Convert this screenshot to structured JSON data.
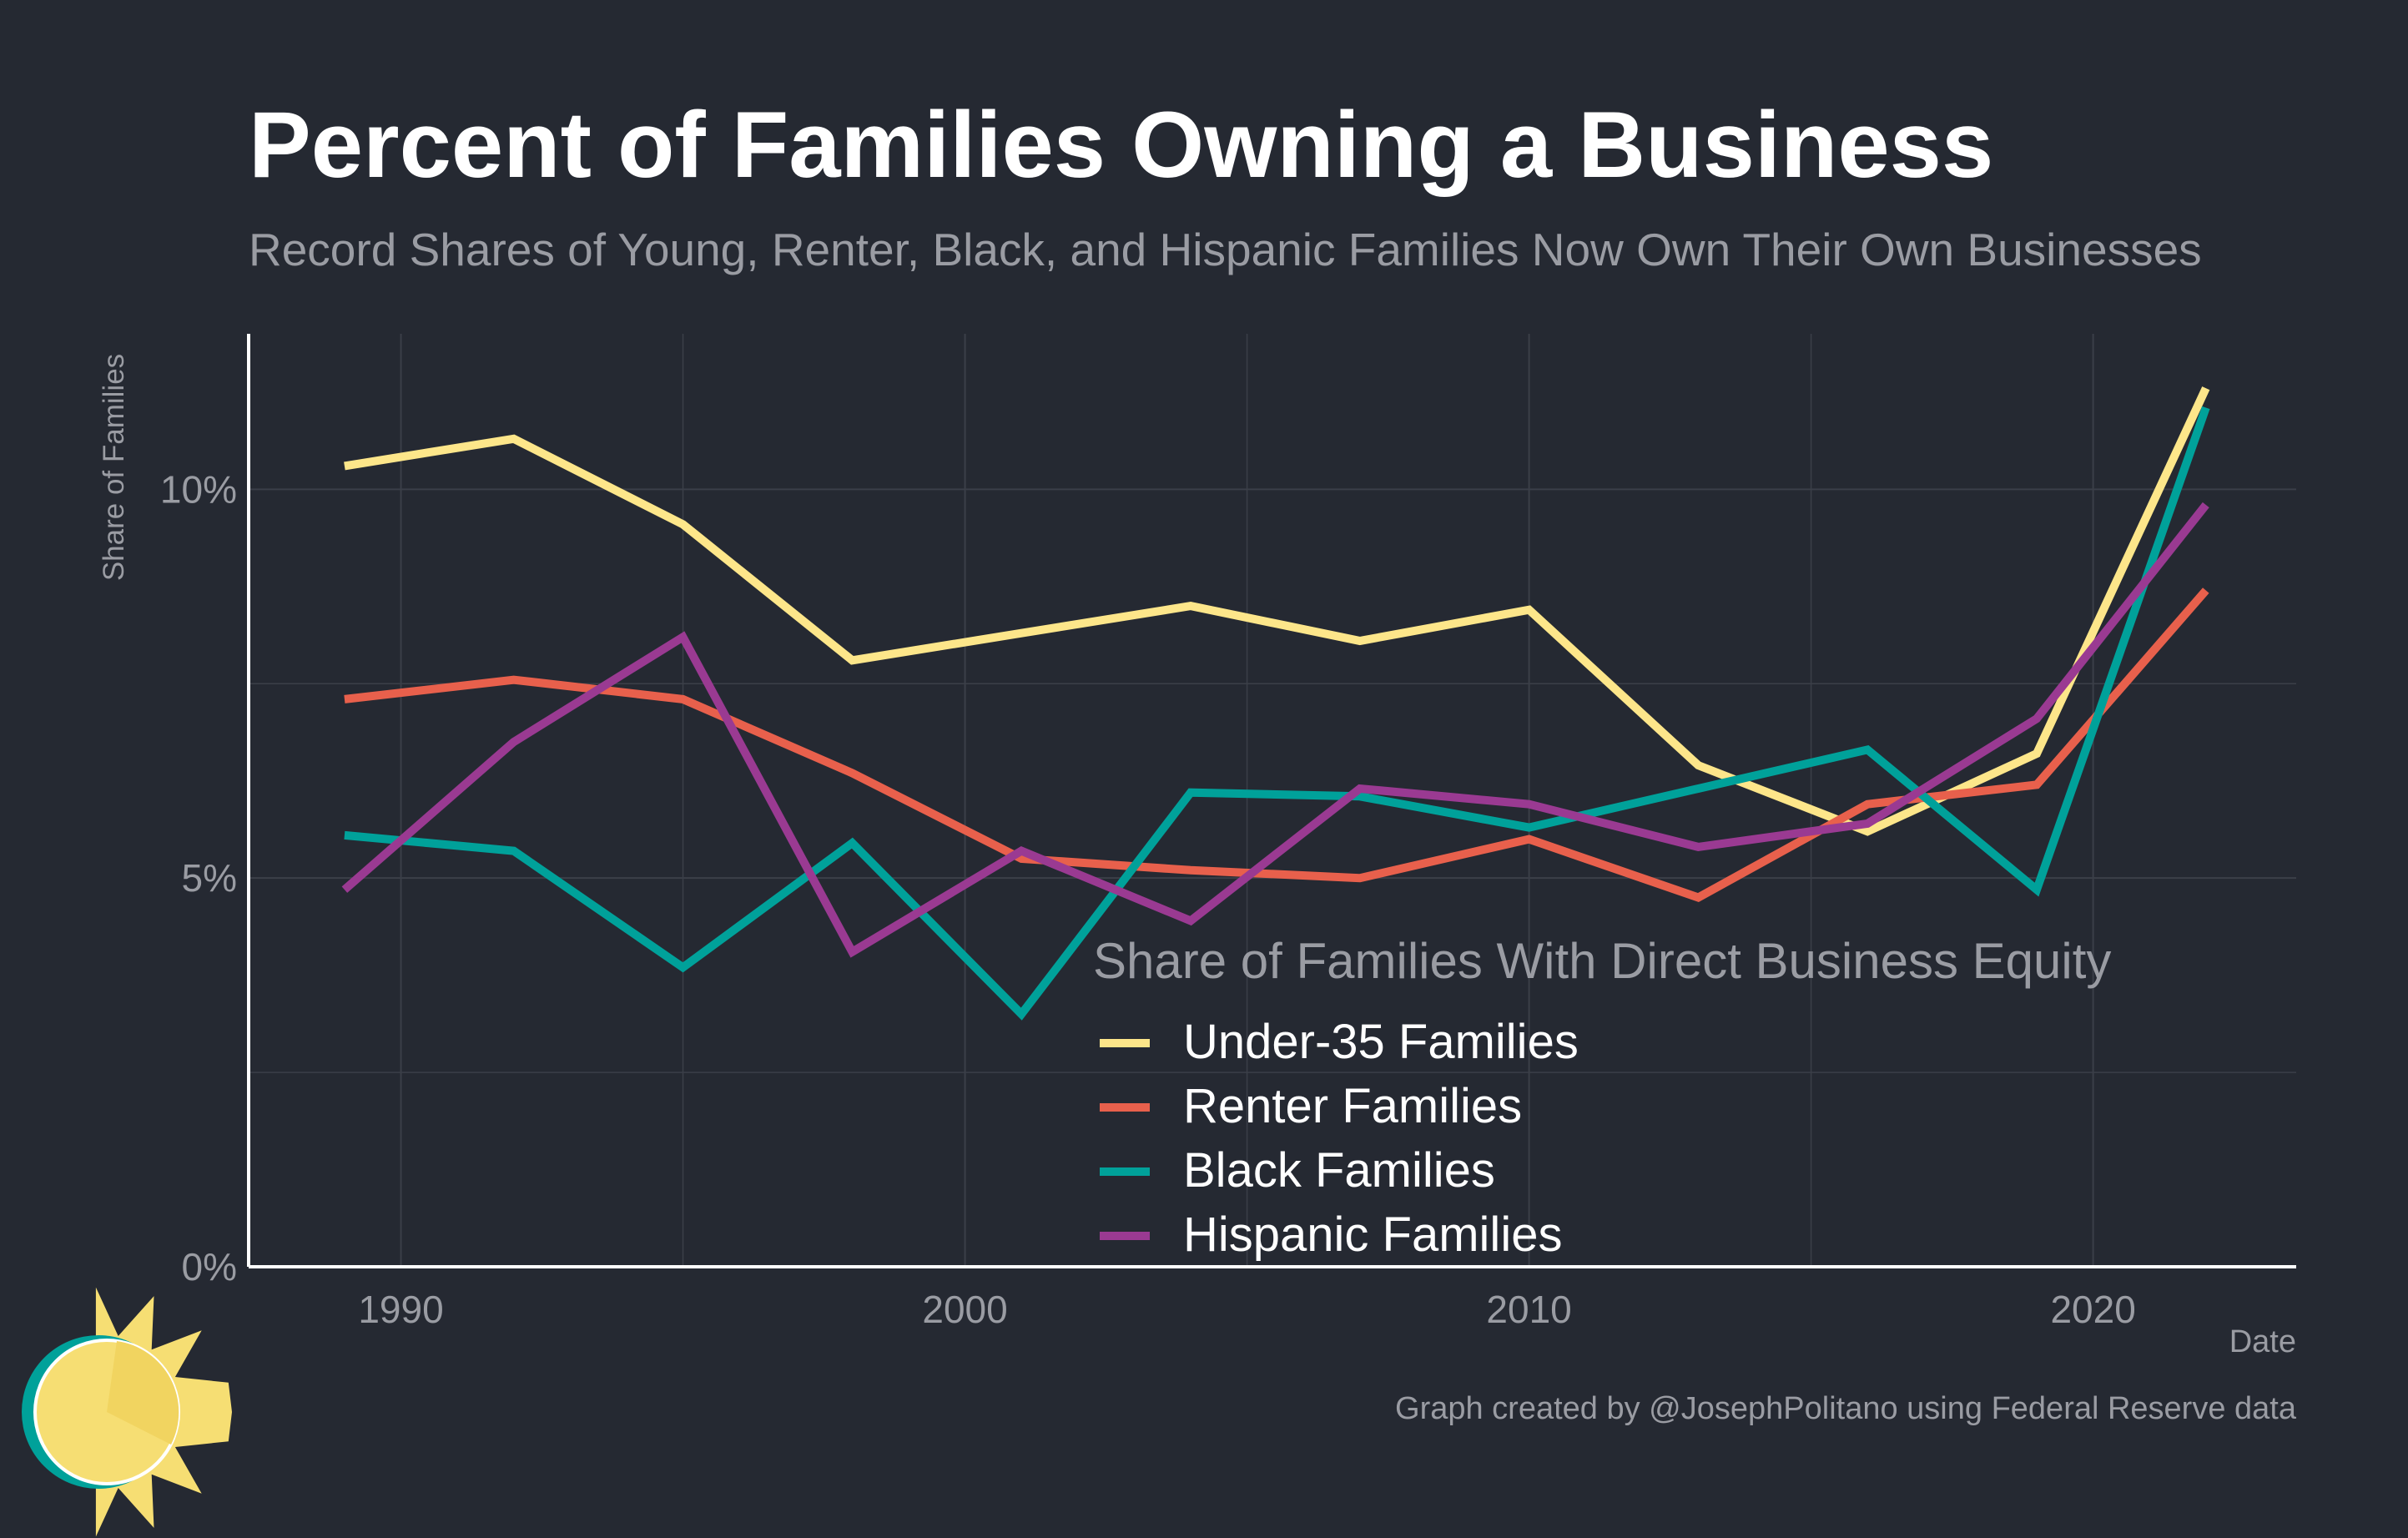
{
  "chart_data": {
    "type": "line",
    "title": "Percent of Families Owning a Business",
    "subtitle": "Record Shares of Young, Renter, Black, and Hispanic Families Now Own Their Own Businesses",
    "xlabel": "Date",
    "ylabel": "Share of Families",
    "xlim": [
      1987.3,
      2023.6
    ],
    "ylim": [
      0,
      12
    ],
    "x_ticks": [
      1990,
      2000,
      2010,
      2020
    ],
    "y_ticks": [
      0,
      5,
      10
    ],
    "y_tick_labels": [
      "0%",
      "5%",
      "10%"
    ],
    "grid": true,
    "legend_title": "Share of Families With Direct Business Equity",
    "legend_position": "bottom-center",
    "x": [
      1989,
      1992,
      1995,
      1998,
      2001,
      2004,
      2007,
      2010,
      2013,
      2016,
      2019,
      2022
    ],
    "series": [
      {
        "name": "Under-35 Families",
        "color": "#fde68a",
        "values": [
          10.3,
          10.65,
          9.55,
          7.8,
          8.15,
          8.5,
          8.05,
          8.45,
          6.45,
          5.6,
          6.6,
          11.3
        ]
      },
      {
        "name": "Renter Families",
        "color": "#e8604c",
        "values": [
          7.3,
          7.55,
          7.3,
          6.35,
          5.25,
          5.1,
          5.0,
          5.5,
          4.75,
          5.95,
          6.2,
          8.7
        ]
      },
      {
        "name": "Black Families",
        "color": "#00a19a",
        "values": [
          5.55,
          5.35,
          3.85,
          5.45,
          3.25,
          6.1,
          6.05,
          5.65,
          6.15,
          6.65,
          4.85,
          11.05
        ]
      },
      {
        "name": "Hispanic Families",
        "color": "#9a3a92",
        "values": [
          4.85,
          6.75,
          8.1,
          4.05,
          5.35,
          4.45,
          6.15,
          5.95,
          5.4,
          5.7,
          7.05,
          9.8
        ]
      }
    ]
  },
  "credit": "Graph created by @JosephPolitano using Federal Reserve data",
  "colors": {
    "background": "#252932",
    "grid": "#3b3f48",
    "axis": "#ffffff",
    "muted_text": "#9a9ca3",
    "logo_sun": "#f6de73",
    "logo_ring": "#00a19a"
  },
  "logo_icon": "sun-logo-icon"
}
